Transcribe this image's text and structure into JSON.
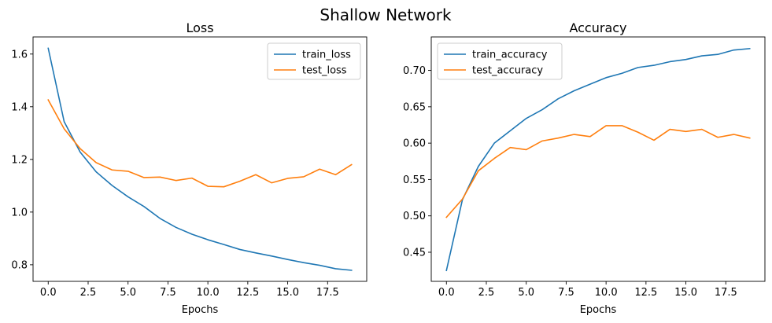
{
  "figure": {
    "suptitle": "Shallow Network"
  },
  "colors": {
    "train": "#1f77b4",
    "test": "#ff7f0e"
  },
  "chart_data": [
    {
      "type": "line",
      "title": "Loss",
      "xlabel": "Epochs",
      "ylabel": "",
      "x": [
        0,
        1,
        2,
        3,
        4,
        5,
        6,
        7,
        8,
        9,
        10,
        11,
        12,
        13,
        14,
        15,
        16,
        17,
        18,
        19
      ],
      "xlim": [
        -0.95,
        19.95
      ],
      "ylim": [
        0.737,
        1.665
      ],
      "xticks": [
        0.0,
        2.5,
        5.0,
        7.5,
        10.0,
        12.5,
        15.0,
        17.5
      ],
      "xtick_labels": [
        "0.0",
        "2.5",
        "5.0",
        "7.5",
        "10.0",
        "12.5",
        "15.0",
        "17.5"
      ],
      "yticks": [
        0.8,
        1.0,
        1.2,
        1.4,
        1.6
      ],
      "ytick_labels": [
        "0.8",
        "1.0",
        "1.2",
        "1.4",
        "1.6"
      ],
      "legend_position": "upper right",
      "series": [
        {
          "name": "train_loss",
          "color_key": "train",
          "values": [
            1.622,
            1.343,
            1.228,
            1.153,
            1.101,
            1.058,
            1.021,
            0.976,
            0.942,
            0.916,
            0.895,
            0.877,
            0.858,
            0.845,
            0.833,
            0.82,
            0.808,
            0.798,
            0.785,
            0.779
          ]
        },
        {
          "name": "test_loss",
          "color_key": "test",
          "values": [
            1.426,
            1.316,
            1.241,
            1.188,
            1.16,
            1.155,
            1.131,
            1.133,
            1.12,
            1.129,
            1.098,
            1.096,
            1.117,
            1.142,
            1.111,
            1.128,
            1.134,
            1.163,
            1.142,
            1.18
          ]
        }
      ]
    },
    {
      "type": "line",
      "title": "Accuracy",
      "xlabel": "Epochs",
      "ylabel": "",
      "x": [
        0,
        1,
        2,
        3,
        4,
        5,
        6,
        7,
        8,
        9,
        10,
        11,
        12,
        13,
        14,
        15,
        16,
        17,
        18,
        19
      ],
      "xlim": [
        -0.95,
        19.95
      ],
      "ylim": [
        0.41,
        0.746
      ],
      "xticks": [
        0.0,
        2.5,
        5.0,
        7.5,
        10.0,
        12.5,
        15.0,
        17.5
      ],
      "xtick_labels": [
        "0.0",
        "2.5",
        "5.0",
        "7.5",
        "10.0",
        "12.5",
        "15.0",
        "17.5"
      ],
      "yticks": [
        0.45,
        0.5,
        0.55,
        0.6,
        0.65,
        0.7
      ],
      "ytick_labels": [
        "0.45",
        "0.50",
        "0.55",
        "0.60",
        "0.65",
        "0.70"
      ],
      "legend_position": "upper left",
      "series": [
        {
          "name": "train_accuracy",
          "color_key": "train",
          "values": [
            0.425,
            0.522,
            0.568,
            0.6,
            0.617,
            0.634,
            0.646,
            0.661,
            0.672,
            0.681,
            0.69,
            0.696,
            0.704,
            0.707,
            0.712,
            0.715,
            0.72,
            0.722,
            0.728,
            0.73
          ]
        },
        {
          "name": "test_accuracy",
          "color_key": "test",
          "values": [
            0.498,
            0.523,
            0.562,
            0.579,
            0.594,
            0.591,
            0.603,
            0.607,
            0.612,
            0.609,
            0.624,
            0.624,
            0.615,
            0.604,
            0.619,
            0.616,
            0.619,
            0.608,
            0.612,
            0.607
          ]
        }
      ]
    }
  ]
}
